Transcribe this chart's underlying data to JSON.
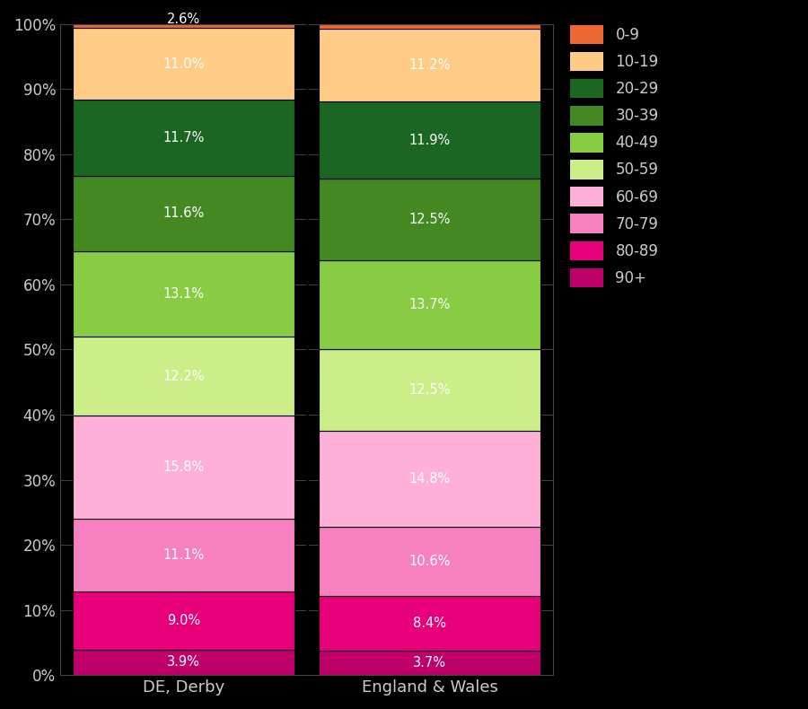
{
  "categories": [
    "DE, Derby",
    "England & Wales"
  ],
  "labels_bottom_to_top": [
    "90+",
    "80-89",
    "70-79",
    "60-69",
    "50-59",
    "40-49",
    "30-39",
    "20-29",
    "10-19",
    "0-9"
  ],
  "colors_bottom_to_top": [
    "#C0006A",
    "#E8007A",
    "#F780C0",
    "#FFB0D8",
    "#CCEE88",
    "#88CC44",
    "#448822",
    "#1A6622",
    "#FFCC88",
    "#EE6633"
  ],
  "derby_values": [
    3.9,
    9.0,
    11.1,
    15.8,
    12.2,
    13.1,
    11.6,
    11.7,
    11.0,
    2.6
  ],
  "ew_values": [
    3.7,
    8.4,
    10.6,
    14.8,
    12.5,
    13.7,
    12.5,
    11.9,
    11.2,
    0.7
  ],
  "background_color": "#000000",
  "text_color": "#cccccc",
  "divider_color": "#000000",
  "grid_color": "#444444",
  "legend_labels": [
    "0-9",
    "10-19",
    "20-29",
    "30-39",
    "40-49",
    "50-59",
    "60-69",
    "70-79",
    "80-89",
    "90+"
  ]
}
